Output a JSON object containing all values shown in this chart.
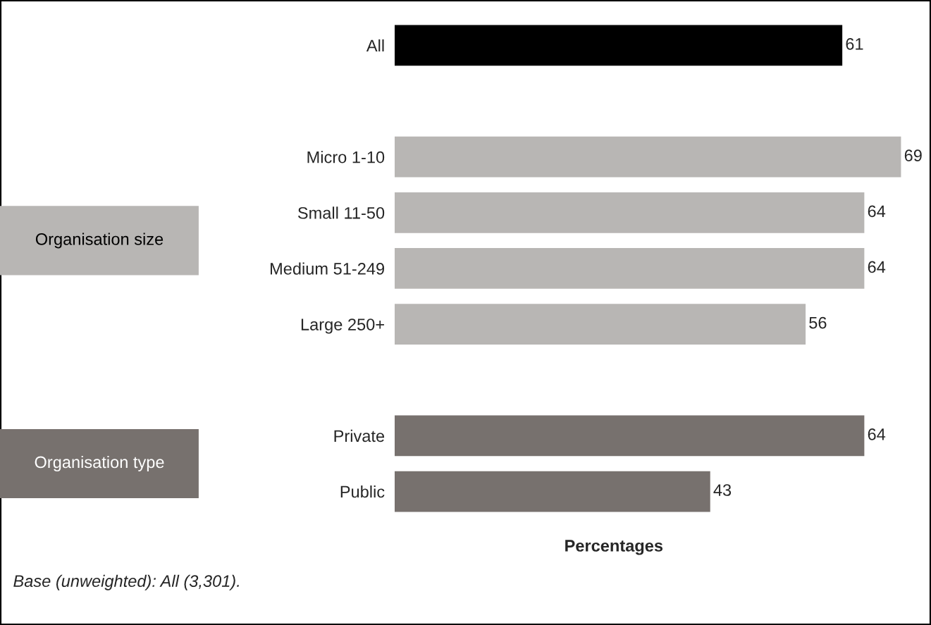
{
  "chart_data": {
    "type": "bar",
    "orientation": "horizontal",
    "categories": [
      "All",
      null,
      "Micro 1-10",
      "Small 11-50",
      "Medium 51-249",
      "Large 250+",
      null,
      "Private",
      "Public"
    ],
    "values": [
      61,
      null,
      69,
      64,
      64,
      56,
      null,
      64,
      43
    ],
    "colors": [
      "#000000",
      null,
      "#b8b6b4",
      "#b8b6b4",
      "#b8b6b4",
      "#b8b6b4",
      null,
      "#77716e",
      "#77716e"
    ],
    "xlabel": "Percentages",
    "data_labels": true,
    "grid": false,
    "legend": false,
    "annotations": [
      "Organisation size",
      "Organisation type",
      "Base (unweighted): All (3,301)."
    ]
  }
}
